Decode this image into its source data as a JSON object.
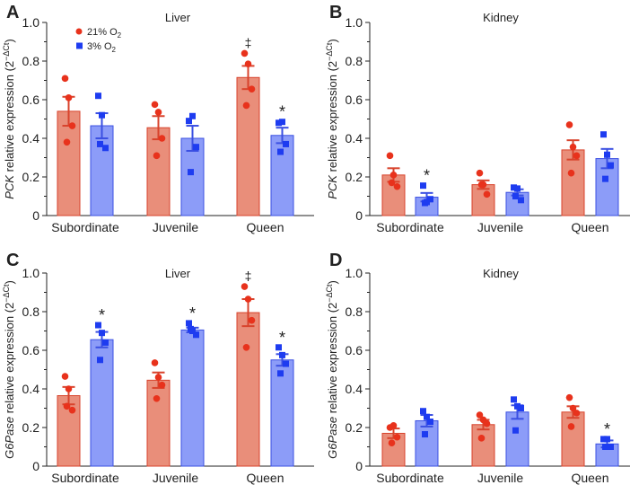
{
  "colors": {
    "red_fill": "#e98e7a",
    "red_stroke": "#d8432c",
    "red_point": "#e8321c",
    "blue_fill": "#8c9cf8",
    "blue_stroke": "#3b50e2",
    "blue_point": "#1e3cf0",
    "axis": "#222222"
  },
  "legend": [
    {
      "label": "21% O",
      "sub": "2",
      "marker": "circle"
    },
    {
      "label": "3% O",
      "sub": "2",
      "marker": "square"
    }
  ],
  "chart_data": [
    {
      "panel": "A",
      "type": "bar",
      "title": "Liver",
      "ylabel_gene": "PCK",
      "ylabel_text": " relative expression (2",
      "ylabel_sup": "−ΔCt",
      "ylabel_end": ")",
      "ylim": [
        0,
        1.0
      ],
      "yticks": [
        "0",
        "0.2",
        "0.4",
        "0.6",
        "0.8",
        "1.0"
      ],
      "categories": [
        "Subordinate",
        "Juvenile",
        "Queen"
      ],
      "series": [
        {
          "name": "21% O2",
          "means": [
            0.54,
            0.455,
            0.715
          ],
          "sem": [
            0.075,
            0.06,
            0.06
          ],
          "points": [
            [
              0.71,
              0.61,
              0.465,
              0.38
            ],
            [
              0.575,
              0.535,
              0.4,
              0.31
            ],
            [
              0.84,
              0.785,
              0.655,
              0.57
            ]
          ],
          "marks": [
            "",
            "",
            "‡"
          ]
        },
        {
          "name": "3% O2",
          "means": [
            0.465,
            0.4,
            0.415
          ],
          "sem": [
            0.065,
            0.065,
            0.04
          ],
          "points": [
            [
              0.62,
              0.52,
              0.35,
              0.37
            ],
            [
              0.49,
              0.515,
              0.355,
              0.225
            ],
            [
              0.48,
              0.485,
              0.37,
              0.33
            ]
          ],
          "marks": [
            "",
            "",
            "*"
          ]
        }
      ]
    },
    {
      "panel": "B",
      "type": "bar",
      "title": "Kidney",
      "ylabel_gene": "PCK",
      "ylabel_text": " relative expression (2",
      "ylabel_sup": "−ΔCt",
      "ylabel_end": ")",
      "ylim": [
        0,
        1.0
      ],
      "yticks": [
        "0",
        "0.2",
        "0.4",
        "0.6",
        "0.8",
        "1.0"
      ],
      "categories": [
        "Subordinate",
        "Juvenile",
        "Queen"
      ],
      "series": [
        {
          "name": "21% O2",
          "means": [
            0.21,
            0.16,
            0.34
          ],
          "sem": [
            0.035,
            0.022,
            0.05
          ],
          "points": [
            [
              0.31,
              0.21,
              0.15,
              0.17
            ],
            [
              0.22,
              0.16,
              0.11,
              0.16
            ],
            [
              0.47,
              0.355,
              0.31,
              0.22
            ]
          ],
          "marks": [
            "",
            "",
            ""
          ]
        },
        {
          "name": "3% O2",
          "means": [
            0.095,
            0.12,
            0.295
          ],
          "sem": [
            0.022,
            0.016,
            0.05
          ],
          "points": [
            [
              0.155,
              0.07,
              0.085,
              0.065
            ],
            [
              0.145,
              0.14,
              0.08,
              0.1
            ],
            [
              0.42,
              0.315,
              0.26,
              0.19
            ]
          ],
          "marks": [
            "*",
            "",
            ""
          ]
        }
      ]
    },
    {
      "panel": "C",
      "type": "bar",
      "title": "Liver",
      "ylabel_gene": "G6Pase",
      "ylabel_text": " relative expression (2",
      "ylabel_sup": "−ΔCt",
      "ylabel_end": ")",
      "ylim": [
        0,
        1.0
      ],
      "yticks": [
        "0",
        "0.2",
        "0.4",
        "0.6",
        "0.8",
        "1.0"
      ],
      "categories": [
        "Subordinate",
        "Juvenile",
        "Queen"
      ],
      "series": [
        {
          "name": "21% O2",
          "means": [
            0.365,
            0.445,
            0.795
          ],
          "sem": [
            0.045,
            0.04,
            0.07
          ],
          "points": [
            [
              0.465,
              0.4,
              0.29,
              0.31
            ],
            [
              0.535,
              0.46,
              0.42,
              0.35
            ],
            [
              0.93,
              0.865,
              0.755,
              0.615
            ]
          ],
          "marks": [
            "",
            "",
            "‡"
          ]
        },
        {
          "name": "3% O2",
          "means": [
            0.655,
            0.705,
            0.55
          ],
          "sem": [
            0.04,
            0.012,
            0.03
          ],
          "points": [
            [
              0.73,
              0.69,
              0.64,
              0.55
            ],
            [
              0.74,
              0.7,
              0.68,
              0.71
            ],
            [
              0.615,
              0.575,
              0.53,
              0.48
            ]
          ],
          "marks": [
            "*",
            "*",
            "*"
          ]
        }
      ]
    },
    {
      "panel": "D",
      "type": "bar",
      "title": "Kidney",
      "ylabel_gene": "G6Pase",
      "ylabel_text": " relative expression (2",
      "ylabel_sup": "−ΔCt",
      "ylabel_end": ")",
      "ylim": [
        0,
        1.0
      ],
      "yticks": [
        "0",
        "0.2",
        "0.4",
        "0.6",
        "0.8",
        "1.0"
      ],
      "categories": [
        "Subordinate",
        "Juvenile",
        "Queen"
      ],
      "series": [
        {
          "name": "21% O2",
          "means": [
            0.17,
            0.215,
            0.28
          ],
          "sem": [
            0.025,
            0.025,
            0.03
          ],
          "points": [
            [
              0.2,
              0.21,
              0.15,
              0.12
            ],
            [
              0.265,
              0.24,
              0.22,
              0.145
            ],
            [
              0.355,
              0.3,
              0.275,
              0.205
            ]
          ],
          "marks": [
            "",
            "",
            ""
          ]
        },
        {
          "name": "3% O2",
          "means": [
            0.235,
            0.28,
            0.115
          ],
          "sem": [
            0.03,
            0.035,
            0.018
          ],
          "points": [
            [
              0.285,
              0.255,
              0.23,
              0.165
            ],
            [
              0.345,
              0.31,
              0.3,
              0.185
            ],
            [
              0.14,
              0.14,
              0.1,
              0.1
            ]
          ],
          "marks": [
            "",
            "",
            "*"
          ]
        }
      ]
    }
  ]
}
